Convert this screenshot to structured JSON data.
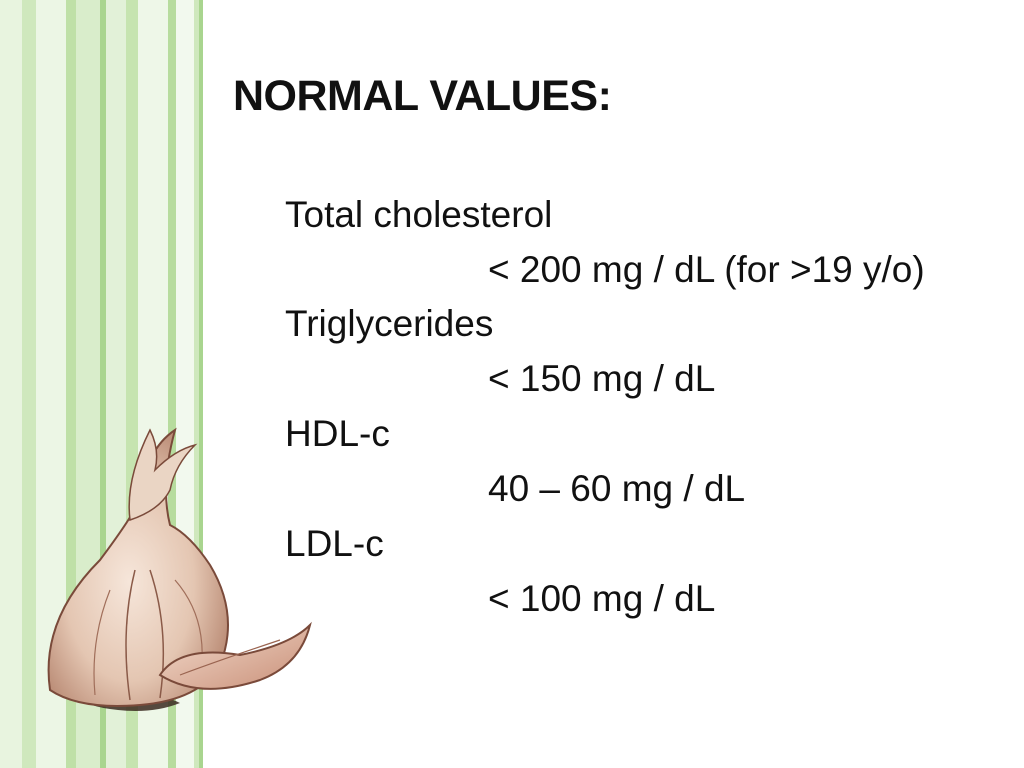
{
  "slide": {
    "title": "NORMAL VALUES:",
    "entries": [
      {
        "name": "Total cholesterol",
        "value": "< 200 mg / dL (for >19 y/o)"
      },
      {
        "name": "Triglycerides",
        "value": "< 150 mg / dL"
      },
      {
        "name": "HDL-c",
        "value": "40 – 60 mg / dL"
      },
      {
        "name": "LDL-c",
        "value": "< 100 mg / dL"
      }
    ]
  },
  "theme": {
    "stripe_light": "#e6f3dc",
    "stripe_mid": "#c9e6b5",
    "stripe_dark": "#a9d58f",
    "text": "#111111",
    "garlic_skin": "#e9d3c3",
    "garlic_outline": "#7a4a3a"
  },
  "decor": {
    "left_border_icon": "green-stripes-border",
    "illustration_icon": "garlic-bulb-icon"
  }
}
